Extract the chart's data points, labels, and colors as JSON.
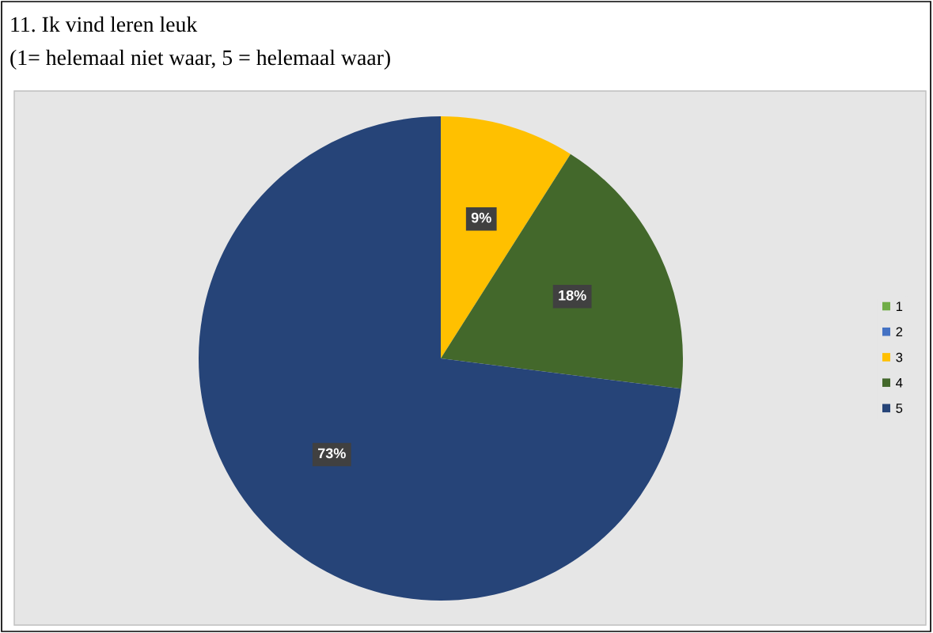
{
  "chart_data": {
    "type": "pie",
    "title": "11. Ik vind leren leuk",
    "subtitle": "(1= helemaal niet waar, 5 = helemaal waar)",
    "categories": [
      "1",
      "2",
      "3",
      "4",
      "5"
    ],
    "values": [
      0,
      0,
      9,
      18,
      73
    ],
    "colors": [
      "#70ad47",
      "#4472c4",
      "#ffc000",
      "#43682b",
      "#264478"
    ],
    "value_labels": [
      null,
      null,
      "9%",
      "18%",
      "73%"
    ],
    "legend": "right"
  }
}
